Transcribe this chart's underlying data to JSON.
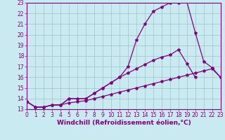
{
  "xlabel": "Windchill (Refroidissement éolien,°C)",
  "xlim": [
    0,
    23
  ],
  "ylim": [
    13,
    23
  ],
  "xticks": [
    0,
    1,
    2,
    3,
    4,
    5,
    6,
    7,
    8,
    9,
    10,
    11,
    12,
    13,
    14,
    15,
    16,
    17,
    18,
    19,
    20,
    21,
    22,
    23
  ],
  "yticks": [
    13,
    14,
    15,
    16,
    17,
    18,
    19,
    20,
    21,
    22,
    23
  ],
  "bg_color": "#c8eaf0",
  "line_color": "#800080",
  "grid_color": "#a0c4cc",
  "line_main_x": [
    0,
    1,
    2,
    3,
    4,
    5,
    6,
    7,
    8,
    9,
    10,
    11,
    12,
    13,
    14,
    15,
    16,
    17,
    18,
    19,
    20,
    21,
    22,
    23
  ],
  "line_main_y": [
    13.7,
    13.2,
    13.2,
    13.4,
    13.4,
    14.0,
    14.0,
    14.0,
    14.5,
    15.0,
    15.5,
    16.0,
    17.0,
    19.5,
    21.0,
    22.2,
    22.6,
    23.0,
    23.0,
    23.1,
    20.2,
    17.5,
    16.9,
    16.0
  ],
  "line_mid_x": [
    0,
    1,
    2,
    3,
    4,
    5,
    6,
    7,
    8,
    9,
    10,
    11,
    12,
    13,
    14,
    15,
    16,
    17,
    18,
    19,
    20
  ],
  "line_mid_y": [
    13.7,
    13.2,
    13.2,
    13.4,
    13.4,
    14.0,
    14.0,
    14.0,
    14.5,
    15.0,
    15.5,
    16.0,
    16.4,
    16.8,
    17.2,
    17.6,
    17.9,
    18.1,
    18.6,
    17.3,
    16.0
  ],
  "line_low_x": [
    0,
    1,
    2,
    3,
    4,
    5,
    6,
    7,
    8,
    9,
    10,
    11,
    12,
    13,
    14,
    15,
    16,
    17,
    18,
    19,
    20,
    21,
    22,
    23
  ],
  "line_low_y": [
    13.7,
    13.2,
    13.2,
    13.4,
    13.4,
    13.6,
    13.7,
    13.8,
    14.0,
    14.2,
    14.4,
    14.6,
    14.8,
    15.0,
    15.2,
    15.4,
    15.6,
    15.8,
    16.0,
    16.2,
    16.4,
    16.6,
    16.8,
    16.0
  ],
  "marker": "*",
  "markersize": 3,
  "linewidth": 0.9,
  "tick_fontsize": 5.5,
  "xlabel_fontsize": 6.5
}
